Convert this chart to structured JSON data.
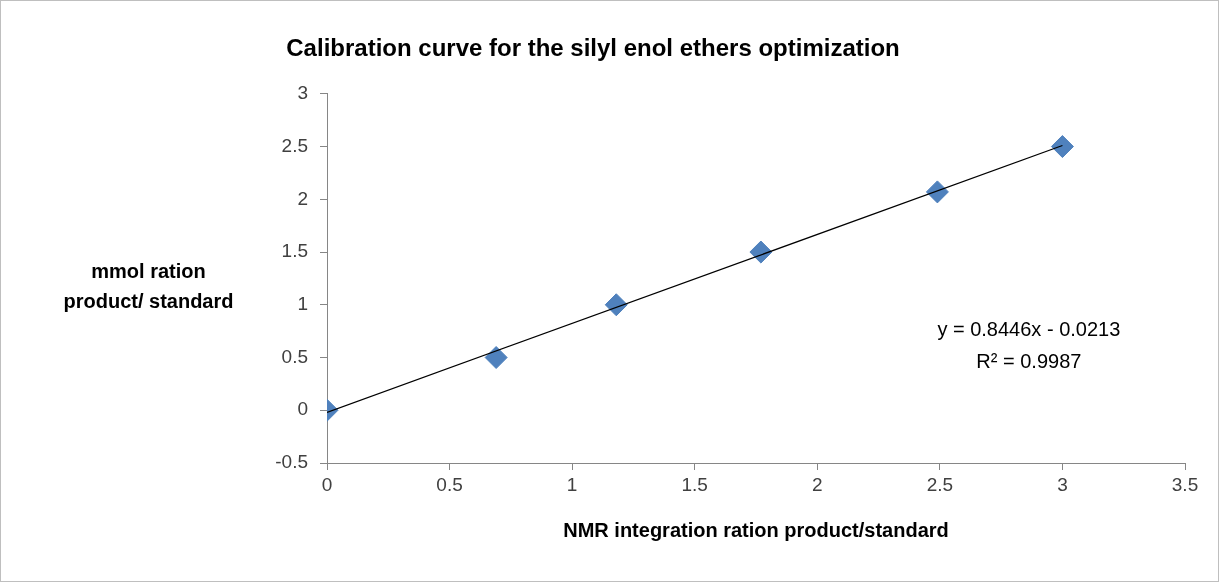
{
  "chart_data": {
    "type": "scatter",
    "title": "Calibration curve for the silyl enol ethers optimization",
    "xlabel": "NMR integration ration product/standard",
    "ylabel": "mmol ration product/ standard",
    "series": [
      {
        "type": "scatter",
        "color": "#4f81bd",
        "marker": "diamond",
        "x": [
          0,
          0.69,
          1.18,
          1.77,
          2.49,
          3.0
        ],
        "values": [
          0,
          0.5,
          1.0,
          1.5,
          2.07,
          2.5
        ]
      },
      {
        "type": "line",
        "color": "#000000",
        "marker": "none",
        "x": [
          0,
          3.0
        ],
        "values": [
          -0.02,
          2.51
        ]
      }
    ],
    "xlim": [
      0,
      3.5
    ],
    "xticks": [
      0,
      0.5,
      1,
      1.5,
      2,
      2.5,
      3,
      3.5
    ],
    "ylim": [
      -0.5,
      3
    ],
    "yticks": [
      -0.5,
      0,
      0.5,
      1,
      1.5,
      2,
      2.5,
      3
    ],
    "annotations": [
      "y = 0.8446x - 0.0213",
      "R² = 0.9987"
    ],
    "grid": false,
    "legend": false
  }
}
